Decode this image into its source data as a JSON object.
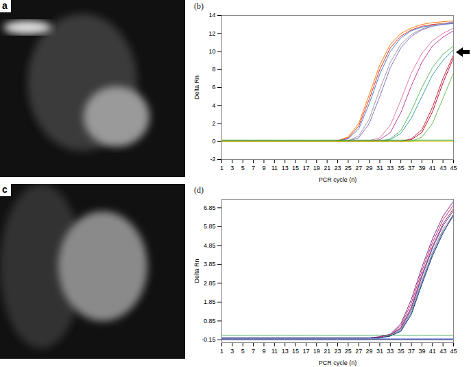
{
  "chart_data": [
    {
      "type": "image",
      "title": "a"
    },
    {
      "type": "line",
      "title": "(b)",
      "xlabel": "PCR cycle (n)",
      "ylabel": "Delta Rn",
      "x": [
        1,
        3,
        5,
        7,
        9,
        11,
        13,
        15,
        17,
        19,
        21,
        23,
        25,
        27,
        29,
        31,
        33,
        35,
        37,
        39,
        41,
        43,
        45
      ],
      "xlim": [
        1,
        45
      ],
      "xticks": [
        1,
        3,
        5,
        7,
        9,
        11,
        13,
        15,
        17,
        19,
        21,
        23,
        25,
        27,
        29,
        31,
        33,
        35,
        37,
        39,
        41,
        43,
        45
      ],
      "ylim": [
        -2,
        14
      ],
      "yticks": [
        -2,
        0,
        2,
        4,
        6,
        8,
        10,
        12,
        14
      ],
      "series": [
        {
          "color": "#ff7f0e",
          "values": [
            0,
            0,
            0,
            0,
            0,
            0,
            0,
            0,
            0,
            0,
            0,
            0.1,
            0.5,
            2.0,
            5.2,
            8.5,
            10.8,
            12.0,
            12.6,
            13.0,
            13.2,
            13.3,
            13.4
          ]
        },
        {
          "color": "#e8312a",
          "values": [
            0,
            0,
            0,
            0,
            0,
            0,
            0,
            0,
            0,
            0,
            0,
            0.05,
            0.4,
            1.7,
            4.7,
            8.0,
            10.4,
            11.7,
            12.4,
            12.8,
            13.0,
            13.1,
            13.2
          ]
        },
        {
          "color": "#4a7fd4",
          "values": [
            0,
            0,
            0,
            0,
            0,
            0,
            0,
            0,
            0,
            0,
            0,
            0.05,
            0.3,
            1.4,
            4.2,
            7.5,
            10.0,
            11.5,
            12.3,
            12.7,
            12.9,
            13.0,
            13.1
          ]
        },
        {
          "color": "#9a9aa8",
          "values": [
            0,
            0,
            0,
            0,
            0,
            0,
            0,
            0,
            0,
            0,
            0,
            0,
            0.1,
            0.6,
            2.5,
            5.8,
            8.8,
            10.8,
            11.9,
            12.5,
            12.9,
            13.1,
            13.3
          ]
        },
        {
          "color": "#8a6cc0",
          "values": [
            0,
            0,
            0,
            0,
            0,
            0,
            0,
            0,
            0,
            0,
            0,
            0,
            0.05,
            0.4,
            2.0,
            5.0,
            8.2,
            10.4,
            11.7,
            12.4,
            12.8,
            13.0,
            13.2
          ]
        },
        {
          "color": "#e87aa8",
          "values": [
            0,
            0,
            0,
            0,
            0,
            0,
            0,
            0,
            0,
            0,
            0,
            0,
            0,
            0,
            0.1,
            0.4,
            1.8,
            4.6,
            7.6,
            9.8,
            11.2,
            12.0,
            12.6
          ]
        },
        {
          "color": "#c03ea0",
          "values": [
            0,
            0,
            0,
            0,
            0,
            0,
            0,
            0,
            0,
            0,
            0,
            0,
            0,
            0,
            0,
            0.2,
            1.0,
            3.2,
            6.2,
            8.8,
            10.6,
            11.6,
            12.3
          ]
        },
        {
          "color": "#5cb85c",
          "values": [
            0,
            0,
            0,
            0,
            0,
            0,
            0,
            0,
            0,
            0,
            0,
            0,
            0,
            0,
            0,
            0,
            0.3,
            1.2,
            3.4,
            6.0,
            8.2,
            9.7,
            10.6
          ]
        },
        {
          "color": "#3aa6a0",
          "values": [
            0,
            0,
            0,
            0,
            0,
            0,
            0,
            0,
            0,
            0,
            0,
            0,
            0,
            0,
            0,
            0,
            0.2,
            0.9,
            2.6,
            5.0,
            7.4,
            9.0,
            10.2
          ]
        },
        {
          "color": "#d62030",
          "values": [
            0,
            0,
            0,
            0,
            0,
            0,
            0,
            0,
            0,
            0,
            0,
            0,
            0,
            0,
            0,
            0,
            0,
            0,
            0.3,
            1.3,
            3.8,
            7.0,
            9.6
          ]
        },
        {
          "color": "#b01840",
          "values": [
            0,
            0,
            0,
            0,
            0,
            0,
            0,
            0,
            0,
            0,
            0,
            0,
            0,
            0,
            0,
            0,
            0,
            0,
            0.2,
            1.0,
            3.3,
            6.5,
            9.3
          ]
        },
        {
          "color": "#6cbf4a",
          "values": [
            0,
            0,
            0,
            0,
            0,
            0,
            0,
            0,
            0,
            0,
            0,
            0,
            0,
            0,
            0,
            0,
            0,
            0,
            0,
            0.5,
            2.0,
            4.8,
            7.6
          ]
        },
        {
          "color": "#2ca02c",
          "values": [
            0.15,
            0.15,
            0.15,
            0.15,
            0.15,
            0.15,
            0.15,
            0.15,
            0.15,
            0.15,
            0.15,
            0.15,
            0.15,
            0.15,
            0.15,
            0.15,
            0.15,
            0.15,
            0.15,
            0.15,
            0.15,
            0.15,
            0.15
          ]
        },
        {
          "color": "#e8d020",
          "values": [
            0,
            0,
            0,
            0,
            0,
            0,
            0,
            0,
            0,
            0,
            0,
            0,
            0,
            0,
            0,
            0,
            0,
            0,
            0,
            0,
            0,
            0,
            0
          ]
        }
      ]
    },
    {
      "type": "image",
      "title": "c"
    },
    {
      "type": "line",
      "title": "(d)",
      "xlabel": "PCR cycle (n)",
      "ylabel": "Delta Rn",
      "x": [
        1,
        3,
        5,
        7,
        9,
        11,
        13,
        15,
        17,
        19,
        21,
        23,
        25,
        27,
        29,
        31,
        33,
        35,
        37,
        39,
        41,
        43,
        45
      ],
      "xlim": [
        1,
        45
      ],
      "xticks": [
        1,
        3,
        5,
        7,
        9,
        11,
        13,
        15,
        17,
        19,
        21,
        23,
        25,
        27,
        29,
        31,
        33,
        35,
        37,
        39,
        41,
        43,
        45
      ],
      "ylim": [
        -0.3,
        7.3
      ],
      "yticks": [
        -0.15,
        0.85,
        1.85,
        2.85,
        3.85,
        4.85,
        5.85,
        6.85
      ],
      "series": [
        {
          "color": "#7b2d8e",
          "values": [
            -0.05,
            -0.05,
            -0.05,
            -0.05,
            -0.05,
            -0.05,
            -0.05,
            -0.05,
            -0.05,
            -0.05,
            -0.05,
            -0.05,
            -0.05,
            -0.05,
            -0.05,
            0.02,
            0.15,
            0.7,
            2.0,
            3.7,
            5.2,
            6.4,
            7.2
          ]
        },
        {
          "color": "#c0307a",
          "values": [
            -0.05,
            -0.05,
            -0.05,
            -0.05,
            -0.05,
            -0.05,
            -0.05,
            -0.05,
            -0.05,
            -0.05,
            -0.05,
            -0.05,
            -0.05,
            -0.05,
            -0.05,
            0.0,
            0.12,
            0.6,
            1.8,
            3.5,
            5.0,
            6.2,
            7.0
          ]
        },
        {
          "color": "#d03040",
          "values": [
            -0.05,
            -0.05,
            -0.05,
            -0.05,
            -0.05,
            -0.05,
            -0.05,
            -0.05,
            -0.05,
            -0.05,
            -0.05,
            -0.05,
            -0.05,
            -0.05,
            -0.05,
            -0.05,
            0.1,
            0.5,
            1.6,
            3.3,
            4.8,
            6.0,
            6.8
          ]
        },
        {
          "color": "#3050c0",
          "values": [
            -0.05,
            -0.05,
            -0.05,
            -0.05,
            -0.05,
            -0.05,
            -0.05,
            -0.05,
            -0.05,
            -0.05,
            -0.05,
            -0.05,
            -0.05,
            -0.05,
            -0.05,
            -0.05,
            0.1,
            0.45,
            1.5,
            3.2,
            4.7,
            5.9,
            6.7
          ]
        },
        {
          "color": "#e070a0",
          "values": [
            -0.05,
            -0.05,
            -0.05,
            -0.05,
            -0.05,
            -0.05,
            -0.05,
            -0.05,
            -0.05,
            -0.05,
            -0.05,
            -0.05,
            -0.05,
            -0.05,
            -0.05,
            -0.05,
            0.08,
            0.4,
            1.4,
            3.0,
            4.5,
            5.7,
            6.5
          ]
        },
        {
          "color": "#2a9ab0",
          "values": [
            -0.05,
            -0.05,
            -0.05,
            -0.05,
            -0.05,
            -0.05,
            -0.05,
            -0.05,
            -0.05,
            -0.05,
            -0.05,
            -0.05,
            -0.05,
            -0.05,
            -0.05,
            -0.05,
            0.06,
            0.35,
            1.3,
            2.9,
            4.4,
            5.6,
            6.4
          ]
        },
        {
          "color": "#203070",
          "values": [
            -0.05,
            -0.05,
            -0.05,
            -0.05,
            -0.05,
            -0.05,
            -0.05,
            -0.05,
            -0.05,
            -0.05,
            -0.05,
            -0.05,
            -0.05,
            -0.05,
            -0.05,
            -0.05,
            0.05,
            0.3,
            1.2,
            2.8,
            4.3,
            5.5,
            6.5
          ]
        },
        {
          "color": "#30a050",
          "values": [
            0.1,
            0.1,
            0.1,
            0.1,
            0.1,
            0.1,
            0.1,
            0.1,
            0.1,
            0.1,
            0.1,
            0.1,
            0.1,
            0.1,
            0.1,
            0.1,
            0.1,
            0.1,
            0.1,
            0.1,
            0.1,
            0.1,
            0.1
          ]
        },
        {
          "color": "#1a1a50",
          "values": [
            -0.15,
            -0.15,
            -0.15,
            -0.15,
            -0.15,
            -0.15,
            -0.15,
            -0.15,
            -0.15,
            -0.15,
            -0.15,
            -0.15,
            -0.15,
            -0.15,
            -0.15,
            -0.15,
            -0.15,
            -0.15,
            -0.15,
            -0.15,
            -0.15,
            -0.15,
            -0.15
          ]
        },
        {
          "color": "#4060d0",
          "values": [
            -0.1,
            -0.1,
            -0.1,
            -0.1,
            -0.1,
            -0.1,
            -0.1,
            -0.1,
            -0.1,
            -0.1,
            -0.1,
            -0.1,
            -0.1,
            -0.1,
            -0.1,
            -0.1,
            -0.1,
            -0.1,
            -0.1,
            -0.1,
            -0.1,
            -0.1,
            -0.1
          ]
        }
      ]
    }
  ]
}
